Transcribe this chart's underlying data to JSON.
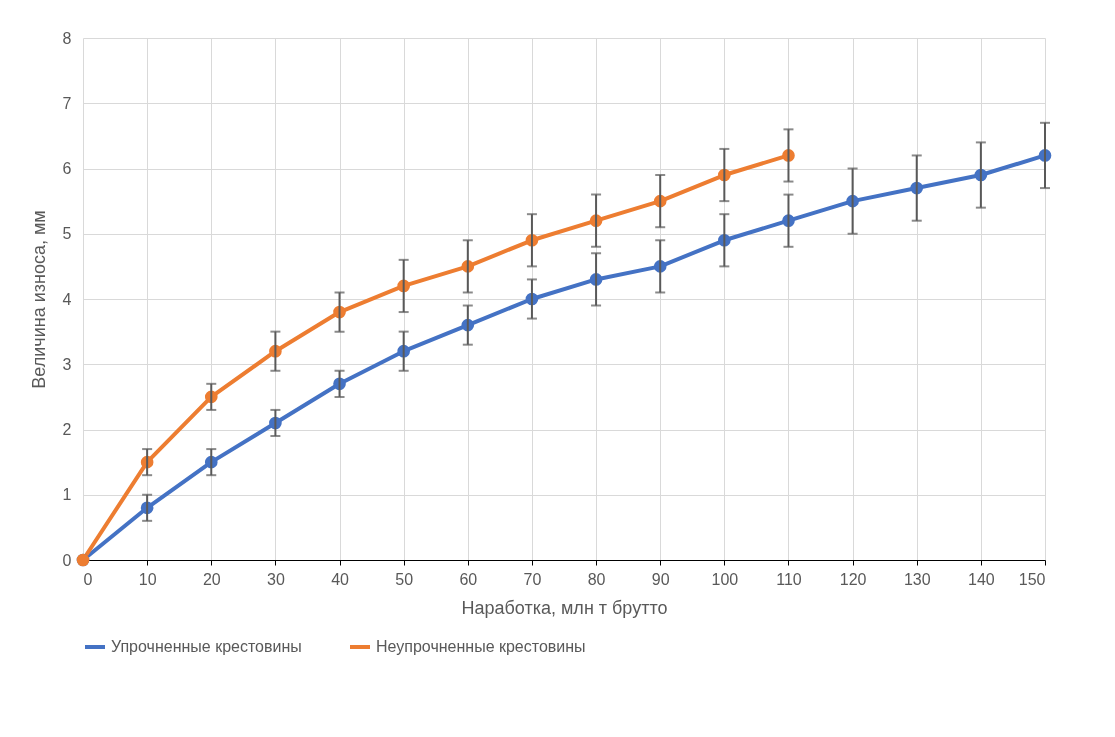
{
  "chart_data": {
    "type": "line",
    "xlabel": "Наработка, млн т брутто",
    "ylabel": "Величина износа, мм",
    "x": [
      0,
      10,
      20,
      30,
      40,
      50,
      60,
      70,
      80,
      90,
      100,
      110,
      120,
      130,
      140,
      150
    ],
    "xlim": [
      0,
      150
    ],
    "xticks": [
      0,
      10,
      20,
      30,
      40,
      50,
      60,
      70,
      80,
      90,
      100,
      110,
      120,
      130,
      140,
      150
    ],
    "ylim": [
      0,
      8
    ],
    "yticks": [
      0,
      1,
      2,
      3,
      4,
      5,
      6,
      7,
      8
    ],
    "grid": true,
    "legend": "bottom",
    "marker": "circle",
    "line_style": "solid",
    "series": [
      {
        "name": "Упрочненные крестовины",
        "color": "#4472c4",
        "values": [
          0,
          0.8,
          1.5,
          2.1,
          2.7,
          3.2,
          3.6,
          4.0,
          4.3,
          4.5,
          4.9,
          5.2,
          5.5,
          5.7,
          5.9,
          6.2
        ],
        "errors": [
          null,
          0.2,
          0.2,
          0.2,
          0.2,
          0.3,
          0.3,
          0.3,
          0.4,
          0.4,
          0.4,
          0.4,
          0.5,
          0.5,
          0.5,
          0.5
        ]
      },
      {
        "name": "Неупрочненные крестовины",
        "color": "#ed7d31",
        "x": [
          0,
          10,
          20,
          30,
          40,
          50,
          60,
          70,
          80,
          90,
          100,
          110
        ],
        "values": [
          0,
          1.5,
          2.5,
          3.2,
          3.8,
          4.2,
          4.5,
          4.9,
          5.2,
          5.5,
          5.9,
          6.2
        ],
        "errors": [
          null,
          0.2,
          0.2,
          0.3,
          0.3,
          0.4,
          0.4,
          0.4,
          0.4,
          0.4,
          0.4,
          0.4
        ]
      }
    ]
  }
}
